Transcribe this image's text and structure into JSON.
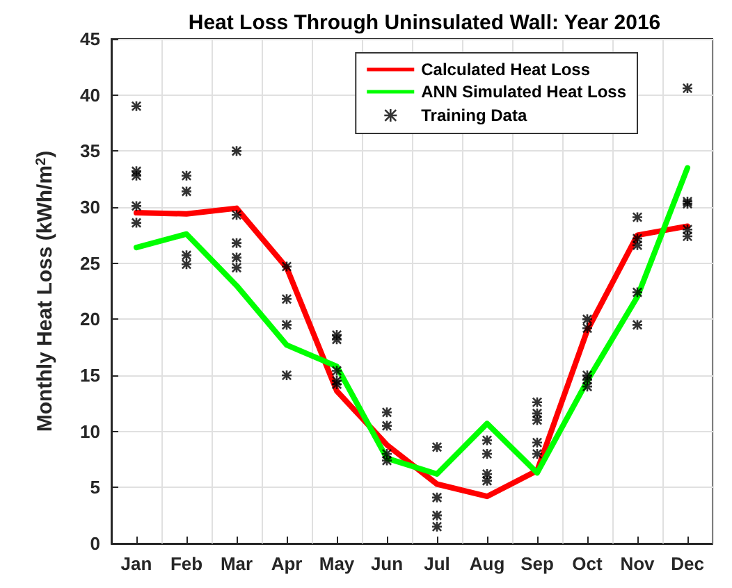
{
  "chart_data": {
    "type": "line",
    "title": "Heat Loss Through Uninsulated Wall: Year 2016",
    "ylabel": "Monthly Heat Loss (kWh/m$^{2}$)",
    "categories": [
      "Jan",
      "Feb",
      "Mar",
      "Apr",
      "May",
      "Jun",
      "Jul",
      "Aug",
      "Sep",
      "Oct",
      "Nov",
      "Dec"
    ],
    "series": [
      {
        "name": "Calculated Heat Loss",
        "color": "#ff0000",
        "values": [
          29.5,
          29.4,
          29.9,
          24.6,
          13.6,
          8.8,
          5.3,
          4.2,
          6.5,
          19,
          27.5,
          28.3
        ]
      },
      {
        "name": "ANN Simulated Heat Loss",
        "color": "#00ff00",
        "values": [
          26.4,
          27.6,
          23,
          17.7,
          15.8,
          7.6,
          6.2,
          10.7,
          6.3,
          14.5,
          22,
          33.5
        ]
      },
      {
        "name": "Training Data",
        "type": "scatter",
        "marker": "cross",
        "color": "#000000",
        "x": [
          "Jan",
          "Jan",
          "Jan",
          "Jan",
          "Jan",
          "Feb",
          "Feb",
          "Feb",
          "Feb",
          "Mar",
          "Mar",
          "Mar",
          "Mar",
          "Mar",
          "Apr",
          "Apr",
          "Apr",
          "Apr",
          "May",
          "May",
          "May",
          "May",
          "May",
          "Jun",
          "Jun",
          "Jun",
          "Jun",
          "Jul",
          "Jul",
          "Jul",
          "Jul",
          "Aug",
          "Aug",
          "Aug",
          "Aug",
          "Sep",
          "Sep",
          "Sep",
          "Sep",
          "Sep",
          "Oct",
          "Oct",
          "Oct",
          "Oct",
          "Oct",
          "Nov",
          "Nov",
          "Nov",
          "Nov",
          "Nov",
          "Dec",
          "Dec",
          "Dec",
          "Dec",
          "Dec"
        ],
        "values": [
          39,
          33.2,
          32.8,
          30.1,
          28.6,
          32.8,
          31.4,
          25.7,
          24.9,
          35,
          29.3,
          26.8,
          25.5,
          24.6,
          24.7,
          21.8,
          19.5,
          15,
          18.6,
          18.2,
          15.4,
          14.5,
          14.2,
          11.7,
          10.5,
          8,
          7.4,
          8.6,
          4.1,
          2.5,
          1.5,
          9.2,
          8,
          6.2,
          5.6,
          12.6,
          11.6,
          11,
          9,
          8,
          20,
          19.2,
          15,
          14.6,
          14,
          29.1,
          27.2,
          26.6,
          22.4,
          19.5,
          40.6,
          30.5,
          30.3,
          28,
          27.4
        ]
      }
    ],
    "ylim": [
      0,
      45
    ],
    "yticks": [
      0,
      5,
      10,
      15,
      20,
      25,
      30,
      35,
      40,
      45
    ],
    "grid": true,
    "legend": "top right",
    "marker": "none",
    "line_style": "solid"
  }
}
